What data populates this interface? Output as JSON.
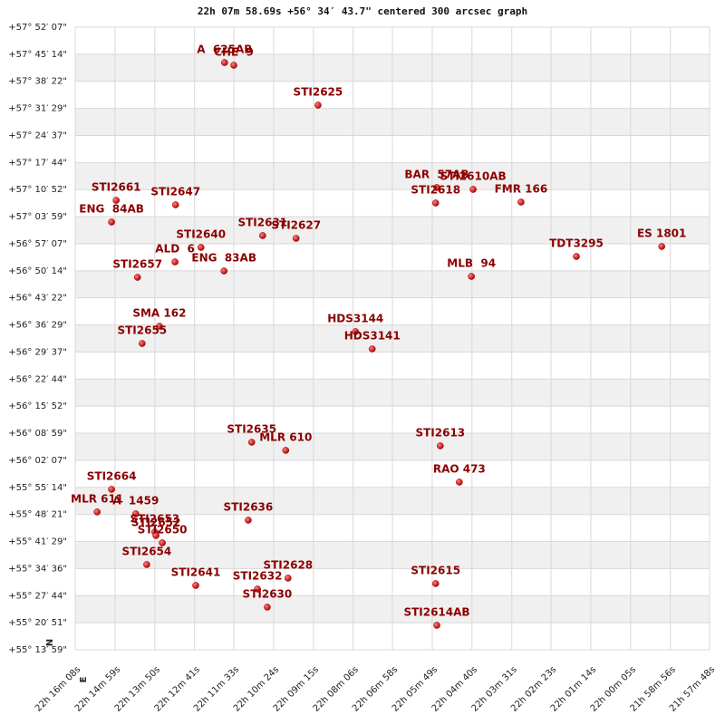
{
  "chart_data": {
    "type": "scatter",
    "title": "22h 07m 58.69s +56° 34′ 43.7\" centered 300 arcsec graph",
    "labels": [
      "A  625AB",
      "CHE  9",
      "STI2625",
      "BAR  57AB",
      "STI2610AB",
      "STI2618",
      "FMR 166",
      "STI2661",
      "ENG  84AB",
      "STI2647",
      "STI2640",
      "ALD  6",
      "ENG  83AB",
      "STI2631",
      "STI2627",
      "STI2657",
      "TDT3295",
      "ES 1801",
      "MLB  94",
      "SMA 162",
      "STI2655",
      "HDS3144",
      "HDS3141",
      "STI2635",
      "MLR 610",
      "STI2613",
      "RAO 473",
      "STI2664",
      "MLR 611",
      "A  1459",
      "STI2653",
      "STI2652",
      "STI2650",
      "STI2654",
      "STI2636",
      "STI2641",
      "STI2632",
      "STI2628",
      "STI2630",
      "STI2615",
      "STI2614AB"
    ],
    "x": [
      79909,
      79893,
      79747,
      79541,
      79478,
      79543,
      79395,
      80097,
      80105,
      79994,
      79950,
      79995,
      79910,
      79843,
      79785,
      80060,
      79299,
      79151,
      79481,
      80022,
      80052,
      79682,
      79653,
      79862,
      79803,
      79535,
      79502,
      80105,
      80130,
      80063,
      80030,
      80028,
      80017,
      80044,
      79868,
      79959,
      79852,
      79799,
      79835,
      79543,
      79541
    ],
    "y": [
      207788,
      207747,
      207139,
      205883,
      205855,
      205648,
      205662,
      205689,
      205358,
      205620,
      204971,
      204750,
      204612,
      205151,
      205109,
      204515,
      204833,
      204985,
      204529,
      203770,
      203507,
      203687,
      203424,
      202002,
      201878,
      201947,
      201394,
      201284,
      200939,
      200911,
      200635,
      200580,
      200469,
      200138,
      200814,
      199820,
      199765,
      199931,
      199489,
      199848,
      199212
    ],
    "color": "#cc0000",
    "label_color": "#8b0000",
    "xlim": [
      80168,
      79068
    ],
    "ylim": [
      198839,
      208327
    ],
    "xticks": [
      {
        "value": 80168,
        "label": "22h 16m 08s"
      },
      {
        "value": 80099,
        "label": "22h 14m 59s"
      },
      {
        "value": 80030,
        "label": "22h 13m 50s"
      },
      {
        "value": 79961,
        "label": "22h 12m 41s"
      },
      {
        "value": 79893,
        "label": "22h 11m 33s"
      },
      {
        "value": 79824,
        "label": "22h 10m 24s"
      },
      {
        "value": 79755,
        "label": "22h 09m 15s"
      },
      {
        "value": 79686,
        "label": "22h 08m 06s"
      },
      {
        "value": 79618,
        "label": "22h 06m 58s"
      },
      {
        "value": 79549,
        "label": "22h 05m 49s"
      },
      {
        "value": 79480,
        "label": "22h 04m 40s"
      },
      {
        "value": 79411,
        "label": "22h 03m 31s"
      },
      {
        "value": 79343,
        "label": "22h 02m 23s"
      },
      {
        "value": 79274,
        "label": "22h 01m 14s"
      },
      {
        "value": 79205,
        "label": "22h 00m 05s"
      },
      {
        "value": 79136,
        "label": "21h 58m 56s"
      },
      {
        "value": 79068,
        "label": "21h 57m 48s"
      }
    ],
    "yticks": [
      {
        "value": 208327,
        "label": "+57° 52′ 07\""
      },
      {
        "value": 207914,
        "label": "+57° 45′ 14\""
      },
      {
        "value": 207502,
        "label": "+57° 38′ 22\""
      },
      {
        "value": 207089,
        "label": "+57° 31′ 29\""
      },
      {
        "value": 206677,
        "label": "+57° 24′ 37\""
      },
      {
        "value": 206264,
        "label": "+57° 17′ 44\""
      },
      {
        "value": 205852,
        "label": "+57° 10′ 52\""
      },
      {
        "value": 205439,
        "label": "+57° 03′ 59\""
      },
      {
        "value": 205027,
        "label": "+56° 57′ 07\""
      },
      {
        "value": 204614,
        "label": "+56° 50′ 14\""
      },
      {
        "value": 204202,
        "label": "+56° 43′ 22\""
      },
      {
        "value": 203789,
        "label": "+56° 36′ 29\""
      },
      {
        "value": 203377,
        "label": "+56° 29′ 37\""
      },
      {
        "value": 202964,
        "label": "+56° 22′ 44\""
      },
      {
        "value": 202552,
        "label": "+56° 15′ 52\""
      },
      {
        "value": 202139,
        "label": "+56° 08′ 59\""
      },
      {
        "value": 201727,
        "label": "+56° 02′ 07\""
      },
      {
        "value": 201314,
        "label": "+55° 55′ 14\""
      },
      {
        "value": 200901,
        "label": "+55° 48′ 21\""
      },
      {
        "value": 200489,
        "label": "+55° 41′ 29\""
      },
      {
        "value": 200076,
        "label": "+55° 34′ 36\""
      },
      {
        "value": 199664,
        "label": "+55° 27′ 44\""
      },
      {
        "value": 199251,
        "label": "+55° 20′ 51\""
      },
      {
        "value": 198839,
        "label": "+55° 13′ 59\""
      }
    ],
    "grid": true,
    "stripes": true,
    "compass": [
      "N",
      "E"
    ]
  }
}
